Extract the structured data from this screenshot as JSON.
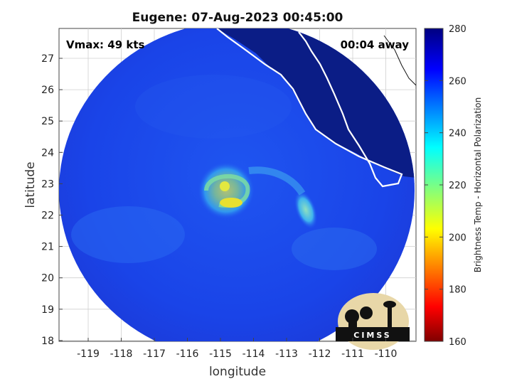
{
  "title": "Eugene: 07-Aug-2023 00:45:00",
  "vmax_label": "Vmax: 49 kts",
  "time_away_label": "00:04 away",
  "xlabel": "longitude",
  "ylabel": "latitude",
  "colorbar": {
    "label": "Brightness Temp - Horizontal Polarization",
    "min": 160,
    "max": 280,
    "ticks": [
      "280",
      "260",
      "240",
      "220",
      "200",
      "180",
      "160"
    ],
    "colormap": "jet"
  },
  "x_ticks": [
    "-119",
    "-118",
    "-117",
    "-116",
    "-115",
    "-114",
    "-113",
    "-112",
    "-111",
    "-110"
  ],
  "y_ticks": [
    "27",
    "26",
    "25",
    "24",
    "23",
    "22",
    "21",
    "20",
    "19",
    "18"
  ],
  "logo": {
    "text": "CIMSS"
  },
  "colors": {
    "background_swath": "#1a3fe6",
    "land_dark": "#0a1a7a",
    "eye_wall": "#e8e030",
    "rainband": "#4fd2e8"
  }
}
